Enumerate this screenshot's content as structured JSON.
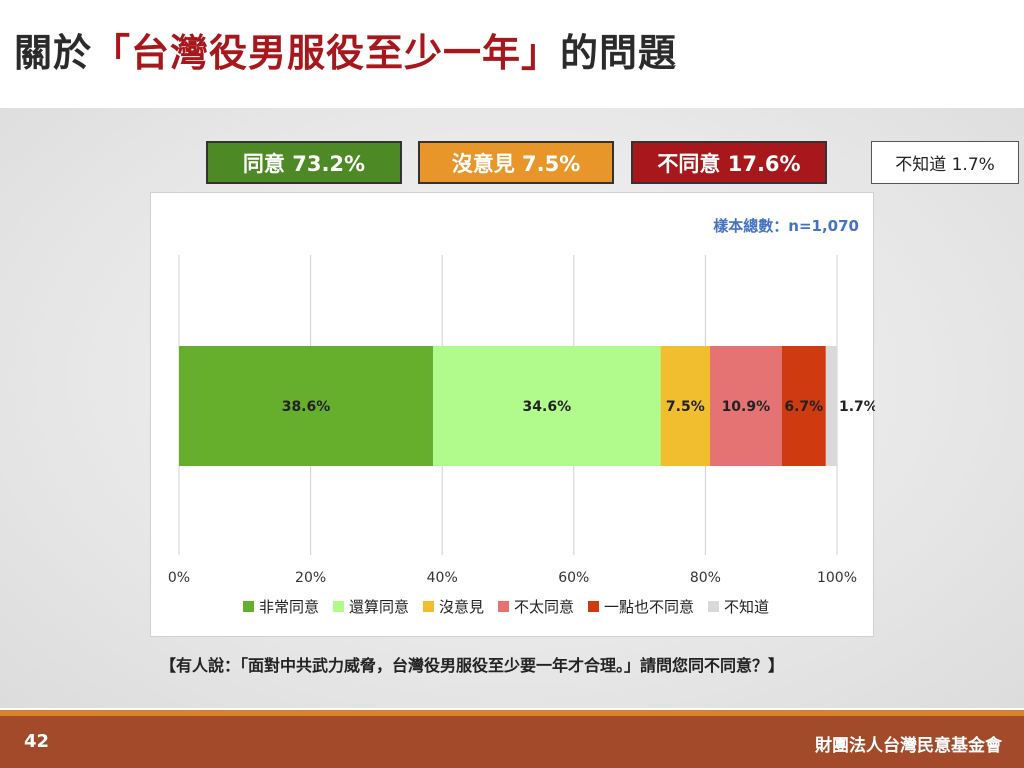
{
  "title": {
    "prefix": "關於",
    "highlight": "「台灣役男服役至少一年」",
    "suffix": "的問題"
  },
  "summary": {
    "agree": {
      "label": "同意 73.2%",
      "color": "#4d8a25"
    },
    "neutral": {
      "label": "沒意見 7.5%",
      "color": "#e8962a"
    },
    "disagree": {
      "label": "不同意 17.6%",
      "color": "#a8171b"
    },
    "unknown": {
      "label": "不知道 1.7%"
    }
  },
  "sample_note": "樣本總數：n=1,070",
  "chart_data": {
    "type": "bar",
    "orientation": "horizontal-stacked-100",
    "xlim": [
      0,
      100
    ],
    "xticks": [
      "0%",
      "20%",
      "40%",
      "60%",
      "80%",
      "100%"
    ],
    "grid": true,
    "legend_position": "bottom",
    "series": [
      {
        "name": "非常同意",
        "value": 38.6,
        "label": "38.6%",
        "color": "#66af2c"
      },
      {
        "name": "還算同意",
        "value": 34.6,
        "label": "34.6%",
        "color": "#b0fb8c"
      },
      {
        "name": "沒意見",
        "value": 7.5,
        "label": "7.5%",
        "color": "#f0be2f"
      },
      {
        "name": "不太同意",
        "value": 10.9,
        "label": "10.9%",
        "color": "#e57373"
      },
      {
        "name": "一點也不同意",
        "value": 6.7,
        "label": "6.7%",
        "color": "#d03a10"
      },
      {
        "name": "不知道",
        "value": 1.7,
        "label": "1.7%",
        "color": "#d9d9d9"
      }
    ]
  },
  "question": "【有人說：「面對中共武力威脅，台灣役男服役至少要一年才合理。」請問您同不同意？】",
  "footer": {
    "page_number": "42",
    "organization": "財團法人台灣民意基金會"
  }
}
